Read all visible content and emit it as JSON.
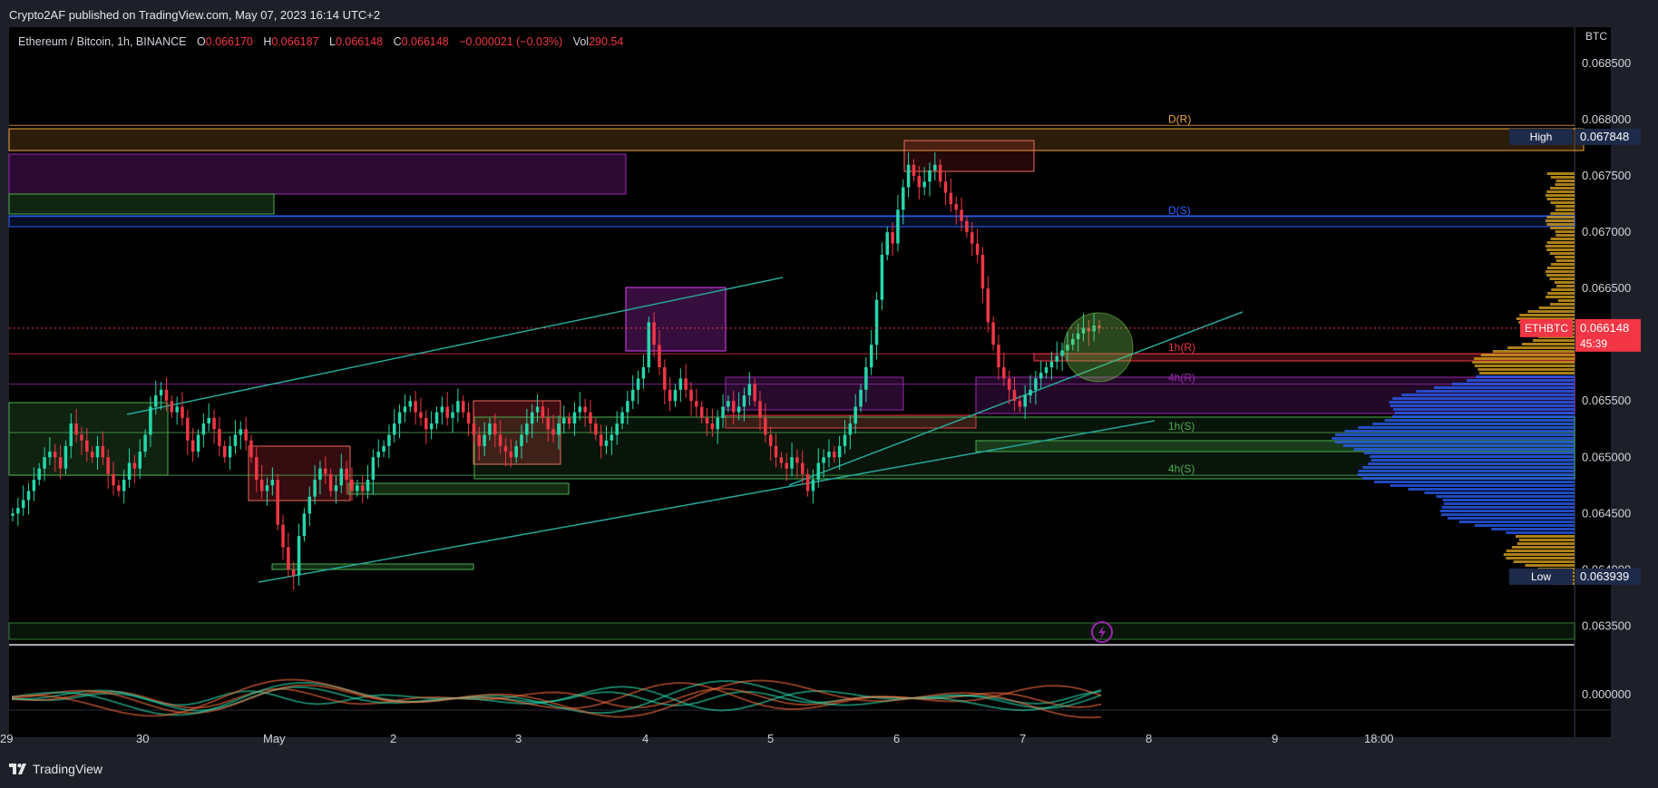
{
  "header": {
    "published": "Crypto2AF published on TradingView.com, May 07, 2023 16:14 UTC+2"
  },
  "legend": {
    "symbol": "Ethereum / Bitcoin, 1h, BINANCE",
    "o_label": "O",
    "o": "0.066170",
    "h_label": "H",
    "h": "0.066187",
    "l_label": "L",
    "l": "0.066148",
    "c_label": "C",
    "c": "0.066148",
    "change": "−0.000021 (−0.03%)",
    "vol_label": "Vol",
    "vol": "290.54"
  },
  "footer": {
    "brand": "TradingView"
  },
  "colors": {
    "bull": "#26d7ab",
    "bear": "#f23645",
    "background": "#000000",
    "price_tag": "#f23645"
  },
  "chart_data": {
    "type": "candlestick",
    "currency": "BTC",
    "ylim": [
      0.06335,
      0.06875
    ],
    "y_ticks": [
      "0.068500",
      "0.068000",
      "0.067500",
      "0.067000",
      "0.066500",
      "0.066000",
      "0.065500",
      "0.065000",
      "0.064500",
      "0.064000",
      "0.063500"
    ],
    "x_ticks": [
      "29",
      "30",
      "May",
      "2",
      "3",
      "4",
      "5",
      "6",
      "7",
      "8",
      "9",
      "18:00"
    ],
    "last_price": {
      "symbol": "ETHBTC",
      "value": "0.066148",
      "countdown": "45:39"
    },
    "high": {
      "label": "High",
      "value": "0.067848"
    },
    "low": {
      "label": "Low",
      "value": "0.063939"
    },
    "oscillator": {
      "value": "0.000000"
    },
    "levels": [
      {
        "label": "D(R)",
        "value": 0.06795,
        "color": "#f2a33c"
      },
      {
        "label": "D(S)",
        "value": 0.06714,
        "color": "#2962ff"
      },
      {
        "label": "1h(R)",
        "value": 0.06592,
        "color": "#f23645"
      },
      {
        "label": "4h(R)",
        "value": 0.06565,
        "color": "#9c27b0"
      },
      {
        "label": "1h(S)",
        "value": 0.06522,
        "color": "#4caf50"
      },
      {
        "label": "4h(S)",
        "value": 0.06484,
        "color": "#4caf50"
      }
    ],
    "closes": [
      0.0645,
      0.06455,
      0.06462,
      0.0647,
      0.0648,
      0.0649,
      0.065,
      0.06505,
      0.065,
      0.0649,
      0.0651,
      0.0653,
      0.0652,
      0.06515,
      0.06505,
      0.065,
      0.0651,
      0.065,
      0.06485,
      0.06475,
      0.0647,
      0.0648,
      0.06495,
      0.0649,
      0.06505,
      0.0652,
      0.06545,
      0.06555,
      0.0656,
      0.0655,
      0.0654,
      0.06545,
      0.06535,
      0.06515,
      0.06505,
      0.0652,
      0.0653,
      0.06535,
      0.06525,
      0.0651,
      0.065,
      0.0651,
      0.0652,
      0.06525,
      0.06515,
      0.065,
      0.0648,
      0.0647,
      0.06475,
      0.0648,
      0.0644,
      0.0642,
      0.064,
      0.06395,
      0.0643,
      0.0645,
      0.06465,
      0.0648,
      0.0649,
      0.06485,
      0.0647,
      0.06475,
      0.0649,
      0.0648,
      0.0647,
      0.06475,
      0.0647,
      0.0648,
      0.065,
      0.06505,
      0.0651,
      0.0652,
      0.0653,
      0.0654,
      0.06545,
      0.0655,
      0.0654,
      0.06535,
      0.06525,
      0.0653,
      0.0654,
      0.06545,
      0.06535,
      0.0654,
      0.0655,
      0.0654,
      0.0653,
      0.0652,
      0.0651,
      0.0652,
      0.0653,
      0.0652,
      0.0651,
      0.06505,
      0.065,
      0.0651,
      0.0652,
      0.0653,
      0.0654,
      0.06545,
      0.06535,
      0.06525,
      0.0652,
      0.0653,
      0.06535,
      0.0653,
      0.0654,
      0.06545,
      0.0654,
      0.0653,
      0.0652,
      0.0651,
      0.06515,
      0.0652,
      0.0653,
      0.0654,
      0.0655,
      0.0656,
      0.0657,
      0.0658,
      0.0662,
      0.066,
      0.0658,
      0.0656,
      0.0655,
      0.0656,
      0.0657,
      0.0656,
      0.0655,
      0.06545,
      0.06535,
      0.0653,
      0.06525,
      0.06535,
      0.06545,
      0.0655,
      0.0654,
      0.06545,
      0.06555,
      0.06565,
      0.0655,
      0.06535,
      0.0652,
      0.0651,
      0.065,
      0.06495,
      0.0649,
      0.065,
      0.06495,
      0.06485,
      0.0647,
      0.0648,
      0.06495,
      0.065,
      0.06505,
      0.065,
      0.0651,
      0.0652,
      0.0653,
      0.06545,
      0.0656,
      0.0658,
      0.066,
      0.0664,
      0.0668,
      0.067,
      0.0669,
      0.0672,
      0.0674,
      0.0676,
      0.0675,
      0.0674,
      0.06745,
      0.06755,
      0.0676,
      0.06745,
      0.06735,
      0.06725,
      0.0672,
      0.0671,
      0.067,
      0.0669,
      0.0668,
      0.0665,
      0.0662,
      0.066,
      0.0658,
      0.0657,
      0.0656,
      0.0655,
      0.06545,
      0.06555,
      0.0656,
      0.0657,
      0.06575,
      0.0658,
      0.06585,
      0.0659,
      0.06595,
      0.066,
      0.06605,
      0.0661,
      0.06615,
      0.06612,
      0.06617,
      0.06615
    ]
  }
}
